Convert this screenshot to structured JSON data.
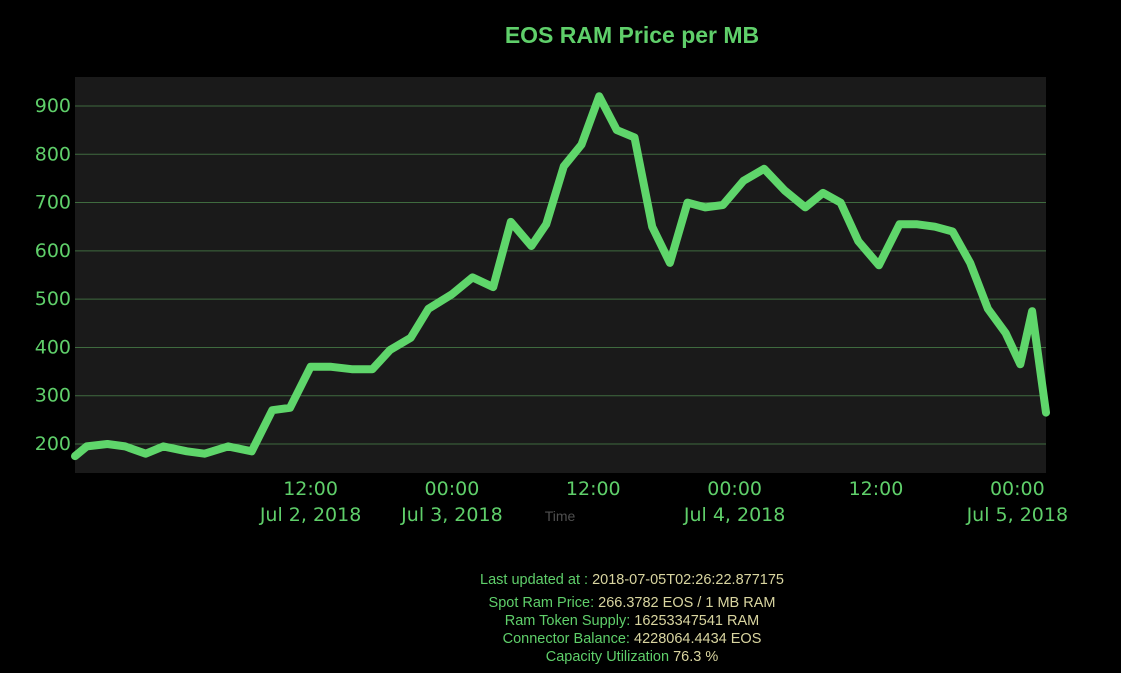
{
  "chart_data": {
    "type": "line",
    "title": "EOS RAM Price per MB",
    "xlabel": "Time",
    "ylabel": "",
    "ylim": [
      140,
      960
    ],
    "xlim": [
      "2018-07-01T16:00",
      "2018-07-05T02:26"
    ],
    "grid": true,
    "y_ticks": [
      200,
      300,
      400,
      500,
      600,
      700,
      800,
      900
    ],
    "x_ticks": [
      {
        "at": "2018-07-02T12:00",
        "time": "12:00",
        "date": "Jul 2, 2018"
      },
      {
        "at": "2018-07-03T00:00",
        "time": "00:00",
        "date": "Jul 3, 2018"
      },
      {
        "at": "2018-07-03T12:00",
        "time": "12:00",
        "date": ""
      },
      {
        "at": "2018-07-04T00:00",
        "time": "00:00",
        "date": "Jul 4, 2018"
      },
      {
        "at": "2018-07-04T12:00",
        "time": "12:00",
        "date": ""
      },
      {
        "at": "2018-07-05T00:00",
        "time": "00:00",
        "date": "Jul 5, 2018"
      }
    ],
    "colors": {
      "line": "#5fd66b",
      "plot_bg": "#1a1a1a",
      "grid": "#3f6b3f",
      "text": "#5fcf6a",
      "axis_title": "#4f4f4f"
    },
    "series": [
      {
        "name": "",
        "x": [
          "2018-07-01T16:00",
          "2018-07-01T17:00",
          "2018-07-01T18:45",
          "2018-07-01T20:15",
          "2018-07-01T22:00",
          "2018-07-01T23:30",
          "2018-07-02T01:30",
          "2018-07-02T03:00",
          "2018-07-02T05:00",
          "2018-07-02T07:00",
          "2018-07-02T08:45",
          "2018-07-02T10:15",
          "2018-07-02T12:00",
          "2018-07-02T13:45",
          "2018-07-02T15:30",
          "2018-07-02T17:15",
          "2018-07-02T18:45",
          "2018-07-02T20:30",
          "2018-07-02T22:00",
          "2018-07-03T00:00",
          "2018-07-03T01:45",
          "2018-07-03T03:30",
          "2018-07-03T05:00",
          "2018-07-03T06:45",
          "2018-07-03T08:00",
          "2018-07-03T09:30",
          "2018-07-03T11:00",
          "2018-07-03T12:30",
          "2018-07-03T14:00",
          "2018-07-03T15:30",
          "2018-07-03T17:00",
          "2018-07-03T18:30",
          "2018-07-03T20:00",
          "2018-07-03T21:30",
          "2018-07-03T23:00",
          "2018-07-04T00:45",
          "2018-07-04T02:30",
          "2018-07-04T04:15",
          "2018-07-04T06:00",
          "2018-07-04T07:30",
          "2018-07-04T09:00",
          "2018-07-04T10:30",
          "2018-07-04T12:15",
          "2018-07-04T14:00",
          "2018-07-04T15:30",
          "2018-07-04T17:00",
          "2018-07-04T18:30",
          "2018-07-04T20:00",
          "2018-07-04T21:30",
          "2018-07-04T23:00",
          "2018-07-05T00:15",
          "2018-07-05T01:15",
          "2018-07-05T02:26"
        ],
        "y": [
          175,
          195,
          200,
          195,
          180,
          195,
          185,
          180,
          195,
          185,
          270,
          275,
          360,
          360,
          355,
          355,
          395,
          420,
          480,
          510,
          545,
          525,
          660,
          610,
          655,
          775,
          820,
          920,
          850,
          835,
          650,
          575,
          700,
          690,
          695,
          745,
          770,
          725,
          690,
          720,
          700,
          620,
          570,
          655,
          655,
          650,
          640,
          575,
          480,
          430,
          365,
          475,
          265
        ]
      }
    ]
  },
  "footer": {
    "last_updated_label": "Last updated at :",
    "last_updated_value": "2018-07-05T02:26:22.877175",
    "spot_price_label": "Spot Ram Price:",
    "spot_price_value": "266.3782 EOS / 1 MB RAM",
    "token_supply_label": "Ram Token Supply:",
    "token_supply_value": "16253347541 RAM",
    "connector_label": "Connector Balance:",
    "connector_value": "4228064.4434 EOS",
    "capacity_label": "Capacity Utilization",
    "capacity_value": "76.3 %"
  }
}
